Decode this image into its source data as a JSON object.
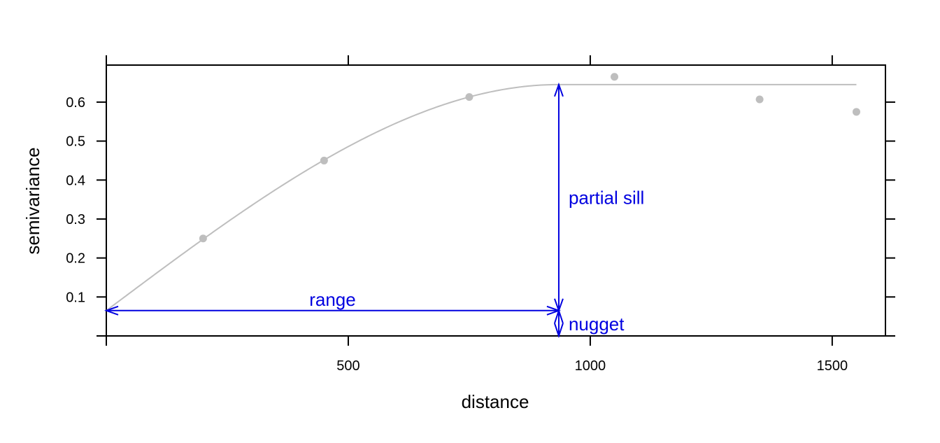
{
  "chart_data": {
    "type": "scatter",
    "xlabel": "distance",
    "ylabel": "semivariance",
    "xlim": [
      0,
      1610
    ],
    "ylim": [
      0,
      0.695
    ],
    "x_ticks": [
      500,
      1000,
      1500
    ],
    "y_ticks": [
      0.1,
      0.2,
      0.3,
      0.4,
      0.5,
      0.6
    ],
    "x_tick_labels": [
      "500",
      "1000",
      "1500"
    ],
    "y_tick_labels": [
      "0.1",
      "0.2",
      "0.3",
      "0.4",
      "0.5",
      "0.6"
    ],
    "grid": false,
    "points": {
      "x": [
        200,
        450,
        750,
        1050,
        1350,
        1550
      ],
      "y": [
        0.25,
        0.45,
        0.613,
        0.665,
        0.607,
        0.575
      ],
      "color": "#bebebe"
    },
    "model": {
      "kind": "spherical",
      "nugget": 0.065,
      "partial_sill": 0.58,
      "range": 935,
      "x_max": 1550,
      "color": "#bebebe"
    },
    "annotations": {
      "color": "#0000e0",
      "range_label": "range",
      "partial_sill_label": "partial sill",
      "nugget_label": "nugget"
    }
  }
}
